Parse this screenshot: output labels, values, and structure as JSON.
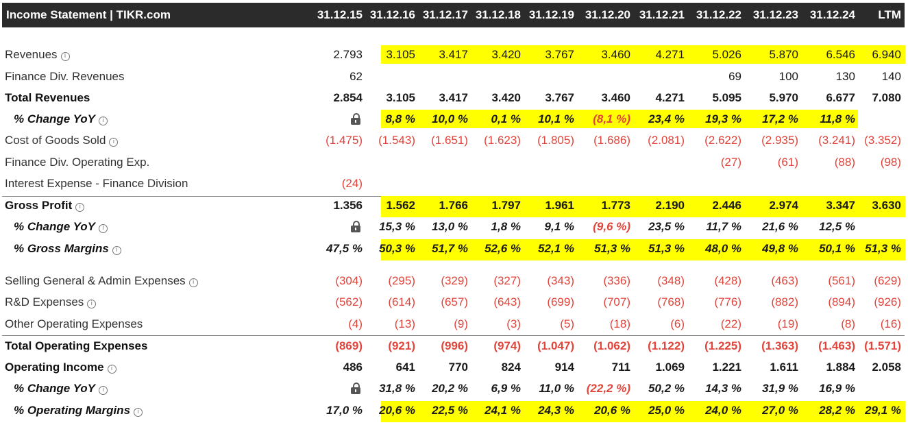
{
  "header": {
    "title": "Income Statement | TIKR.com",
    "columns": [
      "31.12.15",
      "31.12.16",
      "31.12.17",
      "31.12.18",
      "31.12.19",
      "31.12.20",
      "31.12.21",
      "31.12.22",
      "31.12.23",
      "31.12.24",
      "LTM"
    ]
  },
  "rows": [
    {
      "key": "revenues",
      "label": "Revenues",
      "style": "normal",
      "info": true,
      "hl": true,
      "values": [
        "2.793",
        "3.105",
        "3.417",
        "3.420",
        "3.767",
        "3.460",
        "4.271",
        "5.026",
        "5.870",
        "6.546",
        "6.940"
      ]
    },
    {
      "key": "finance-div-revenues",
      "label": "Finance Div. Revenues",
      "style": "normal",
      "info": false,
      "hl": false,
      "values": [
        "62",
        "",
        "",
        "",
        "",
        "",
        "",
        "69",
        "100",
        "130",
        "140"
      ]
    },
    {
      "key": "total-revenues",
      "label": "Total Revenues",
      "style": "bold",
      "info": false,
      "hl": false,
      "values": [
        "2.854",
        "3.105",
        "3.417",
        "3.420",
        "3.767",
        "3.460",
        "4.271",
        "5.095",
        "5.970",
        "6.677",
        "7.080"
      ]
    },
    {
      "key": "revenue-change-yoy",
      "label": "% Change YoY",
      "style": "ital",
      "info": true,
      "hl": true,
      "hl_end": 9,
      "lock": true,
      "values": [
        "",
        "8,8 %",
        "10,0 %",
        "0,1 %",
        "10,1 %",
        "(8,1 %)",
        "23,4 %",
        "19,3 %",
        "17,2 %",
        "11,8 %",
        ""
      ]
    },
    {
      "key": "cost-of-goods-sold",
      "label": "Cost of Goods Sold",
      "style": "normal",
      "info": true,
      "hl": false,
      "values": [
        "(1.475)",
        "(1.543)",
        "(1.651)",
        "(1.623)",
        "(1.805)",
        "(1.686)",
        "(2.081)",
        "(2.622)",
        "(2.935)",
        "(3.241)",
        "(3.352)"
      ]
    },
    {
      "key": "finance-div-operating-exp",
      "label": "Finance Div. Operating Exp.",
      "style": "normal",
      "info": false,
      "hl": false,
      "values": [
        "",
        "",
        "",
        "",
        "",
        "",
        "",
        "(27)",
        "(61)",
        "(88)",
        "(98)"
      ]
    },
    {
      "key": "interest-expense-finance-division",
      "label": "Interest Expense - Finance Division",
      "style": "normal",
      "info": false,
      "hl": false,
      "values": [
        "(24)",
        "",
        "",
        "",
        "",
        "",
        "",
        "",
        "",
        "",
        ""
      ]
    },
    {
      "key": "gross-profit",
      "label": "Gross Profit",
      "style": "bold",
      "info": true,
      "hl": true,
      "values": [
        "1.356",
        "1.562",
        "1.766",
        "1.797",
        "1.961",
        "1.773",
        "2.190",
        "2.446",
        "2.974",
        "3.347",
        "3.630"
      ]
    },
    {
      "key": "gross-profit-change-yoy",
      "label": "% Change YoY",
      "style": "ital",
      "info": true,
      "hl": false,
      "lock": true,
      "values": [
        "",
        "15,3 %",
        "13,0 %",
        "1,8 %",
        "9,1 %",
        "(9,6 %)",
        "23,5 %",
        "11,7 %",
        "21,6 %",
        "12,5 %",
        ""
      ]
    },
    {
      "key": "gross-margins",
      "label": "% Gross Margins",
      "style": "ital",
      "info": true,
      "hl": true,
      "values": [
        "47,5 %",
        "50,3 %",
        "51,7 %",
        "52,6 %",
        "52,1 %",
        "51,3 %",
        "51,3 %",
        "48,0 %",
        "49,8 %",
        "50,1 %",
        "51,3 %"
      ]
    },
    {
      "key": "sga-expenses",
      "label": "Selling General & Admin Expenses",
      "style": "normal",
      "info": true,
      "hl": false,
      "values": [
        "(304)",
        "(295)",
        "(329)",
        "(327)",
        "(343)",
        "(336)",
        "(348)",
        "(428)",
        "(463)",
        "(561)",
        "(629)"
      ]
    },
    {
      "key": "rd-expenses",
      "label": "R&D Expenses",
      "style": "normal",
      "info": true,
      "hl": false,
      "values": [
        "(562)",
        "(614)",
        "(657)",
        "(643)",
        "(699)",
        "(707)",
        "(768)",
        "(776)",
        "(882)",
        "(894)",
        "(926)"
      ]
    },
    {
      "key": "other-operating-expenses",
      "label": "Other Operating Expenses",
      "style": "normal",
      "info": false,
      "hl": false,
      "values": [
        "(4)",
        "(13)",
        "(9)",
        "(3)",
        "(5)",
        "(18)",
        "(6)",
        "(22)",
        "(19)",
        "(8)",
        "(16)"
      ]
    },
    {
      "key": "total-operating-expenses",
      "label": "Total Operating Expenses",
      "style": "bold",
      "info": false,
      "hl": false,
      "values": [
        "(869)",
        "(921)",
        "(996)",
        "(974)",
        "(1.047)",
        "(1.062)",
        "(1.122)",
        "(1.225)",
        "(1.363)",
        "(1.463)",
        "(1.571)"
      ]
    },
    {
      "key": "operating-income",
      "label": "Operating Income",
      "style": "bold",
      "info": true,
      "hl": false,
      "values": [
        "486",
        "641",
        "770",
        "824",
        "914",
        "711",
        "1.069",
        "1.221",
        "1.611",
        "1.884",
        "2.058"
      ]
    },
    {
      "key": "operating-income-change-yoy",
      "label": "% Change YoY",
      "style": "ital",
      "info": true,
      "hl": false,
      "lock": true,
      "values": [
        "",
        "31,8 %",
        "20,2 %",
        "6,9 %",
        "11,0 %",
        "(22,2 %)",
        "50,2 %",
        "14,3 %",
        "31,9 %",
        "16,9 %",
        ""
      ]
    },
    {
      "key": "operating-margins",
      "label": "% Operating Margins",
      "style": "ital",
      "info": true,
      "hl": true,
      "values": [
        "17,0 %",
        "20,6 %",
        "22,5 %",
        "24,1 %",
        "24,3 %",
        "20,6 %",
        "25,0 %",
        "24,0 %",
        "27,0 %",
        "28,2 %",
        "29,1 %"
      ]
    }
  ],
  "colors": {
    "header_bg": "#2b2b2b",
    "highlight": "#ffff00",
    "negative": "#e0443a"
  },
  "icons": {
    "info": "info-icon",
    "lock": "lock-icon"
  }
}
